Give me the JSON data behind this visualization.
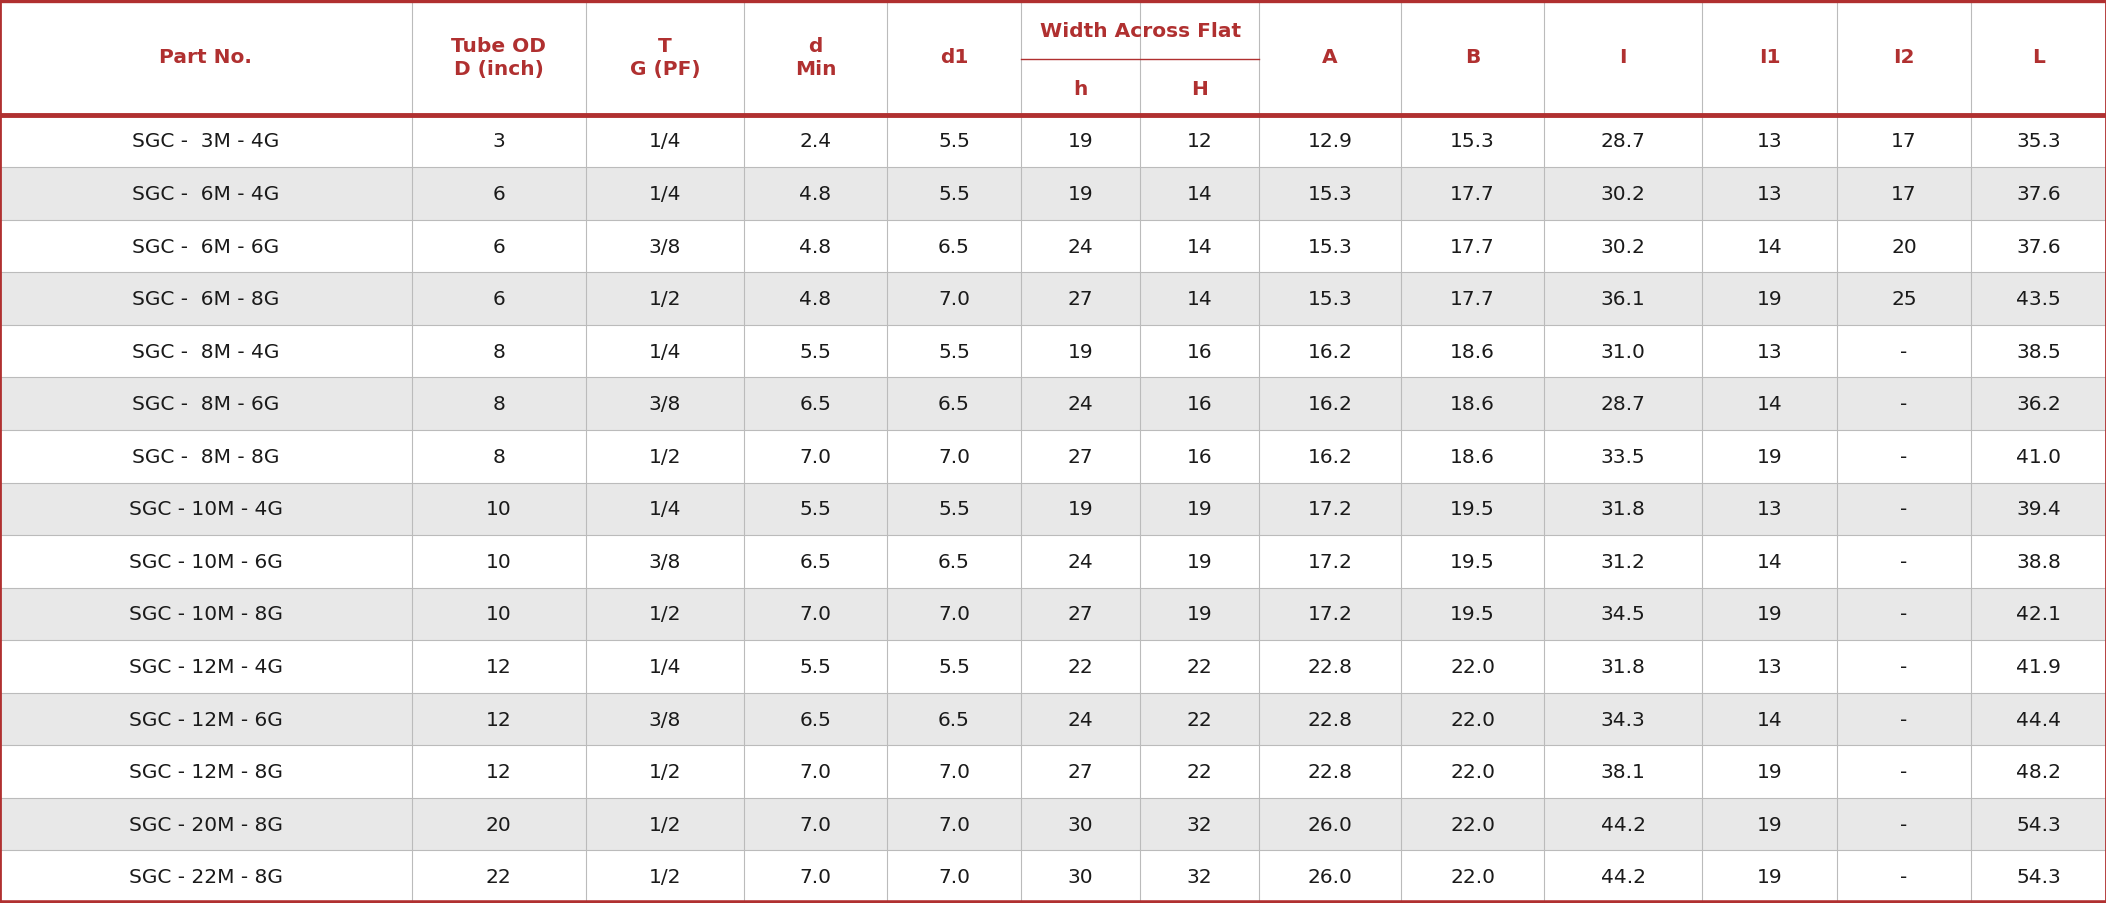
{
  "rows": [
    [
      "SGC -  3M - 4G",
      "3",
      "1/4",
      "2.4",
      "5.5",
      "19",
      "12",
      "12.9",
      "15.3",
      "28.7",
      "13",
      "17",
      "35.3"
    ],
    [
      "SGC -  6M - 4G",
      "6",
      "1/4",
      "4.8",
      "5.5",
      "19",
      "14",
      "15.3",
      "17.7",
      "30.2",
      "13",
      "17",
      "37.6"
    ],
    [
      "SGC -  6M - 6G",
      "6",
      "3/8",
      "4.8",
      "6.5",
      "24",
      "14",
      "15.3",
      "17.7",
      "30.2",
      "14",
      "20",
      "37.6"
    ],
    [
      "SGC -  6M - 8G",
      "6",
      "1/2",
      "4.8",
      "7.0",
      "27",
      "14",
      "15.3",
      "17.7",
      "36.1",
      "19",
      "25",
      "43.5"
    ],
    [
      "SGC -  8M - 4G",
      "8",
      "1/4",
      "5.5",
      "5.5",
      "19",
      "16",
      "16.2",
      "18.6",
      "31.0",
      "13",
      "-",
      "38.5"
    ],
    [
      "SGC -  8M - 6G",
      "8",
      "3/8",
      "6.5",
      "6.5",
      "24",
      "16",
      "16.2",
      "18.6",
      "28.7",
      "14",
      "-",
      "36.2"
    ],
    [
      "SGC -  8M - 8G",
      "8",
      "1/2",
      "7.0",
      "7.0",
      "27",
      "16",
      "16.2",
      "18.6",
      "33.5",
      "19",
      "-",
      "41.0"
    ],
    [
      "SGC - 10M - 4G",
      "10",
      "1/4",
      "5.5",
      "5.5",
      "19",
      "19",
      "17.2",
      "19.5",
      "31.8",
      "13",
      "-",
      "39.4"
    ],
    [
      "SGC - 10M - 6G",
      "10",
      "3/8",
      "6.5",
      "6.5",
      "24",
      "19",
      "17.2",
      "19.5",
      "31.2",
      "14",
      "-",
      "38.8"
    ],
    [
      "SGC - 10M - 8G",
      "10",
      "1/2",
      "7.0",
      "7.0",
      "27",
      "19",
      "17.2",
      "19.5",
      "34.5",
      "19",
      "-",
      "42.1"
    ],
    [
      "SGC - 12M - 4G",
      "12",
      "1/4",
      "5.5",
      "5.5",
      "22",
      "22",
      "22.8",
      "22.0",
      "31.8",
      "13",
      "-",
      "41.9"
    ],
    [
      "SGC - 12M - 6G",
      "12",
      "3/8",
      "6.5",
      "6.5",
      "24",
      "22",
      "22.8",
      "22.0",
      "34.3",
      "14",
      "-",
      "44.4"
    ],
    [
      "SGC - 12M - 8G",
      "12",
      "1/2",
      "7.0",
      "7.0",
      "27",
      "22",
      "22.8",
      "22.0",
      "38.1",
      "19",
      "-",
      "48.2"
    ],
    [
      "SGC - 20M - 8G",
      "20",
      "1/2",
      "7.0",
      "7.0",
      "30",
      "32",
      "26.0",
      "22.0",
      "44.2",
      "19",
      "-",
      "54.3"
    ],
    [
      "SGC - 22M - 8G",
      "22",
      "1/2",
      "7.0",
      "7.0",
      "30",
      "32",
      "26.0",
      "22.0",
      "44.2",
      "19",
      "-",
      "54.3"
    ]
  ],
  "header_text_color": "#b03030",
  "border_color": "#b03030",
  "row_colors": [
    "#ffffff",
    "#e8e8e8"
  ],
  "text_color": "#1a1a1a",
  "font_size": 14.5,
  "header_font_size": 14.5,
  "fig_width": 21.06,
  "fig_height": 9.04,
  "col_widths": [
    2.6,
    1.1,
    1.0,
    0.9,
    0.85,
    0.75,
    0.75,
    0.9,
    0.9,
    1.0,
    0.85,
    0.85,
    0.85
  ]
}
